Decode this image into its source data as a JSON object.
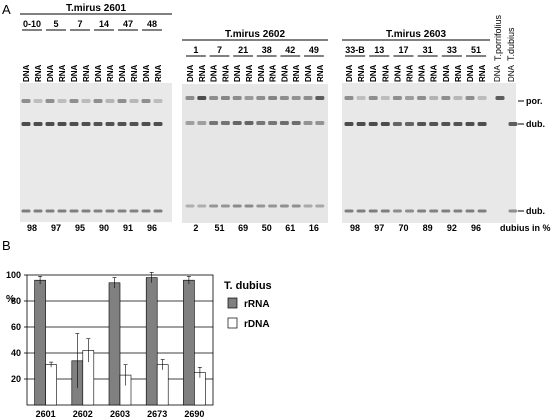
{
  "panelA": {
    "label": "A",
    "gels": [
      {
        "title": "T.mirus 2601",
        "groups": [
          {
            "label": "0-10",
            "lanes": [
              "DNA",
              "RNA"
            ],
            "pct": "98"
          },
          {
            "label": "5",
            "lanes": [
              "DNA",
              "RNA"
            ],
            "pct": "97"
          },
          {
            "label": "7",
            "lanes": [
              "DNA",
              "RNA"
            ],
            "pct": "95"
          },
          {
            "label": "14",
            "lanes": [
              "DNA",
              "RNA"
            ],
            "pct": "90"
          },
          {
            "label": "47",
            "lanes": [
              "DNA",
              "RNA"
            ],
            "pct": "91"
          },
          {
            "label": "48",
            "lanes": [
              "DNA",
              "RNA"
            ],
            "pct": "96"
          }
        ]
      },
      {
        "title": "T.mirus 2602",
        "groups": [
          {
            "label": "1",
            "lanes": [
              "DNA",
              "RNA"
            ],
            "pct": "2"
          },
          {
            "label": "7",
            "lanes": [
              "DNA",
              "RNA"
            ],
            "pct": "51"
          },
          {
            "label": "21",
            "lanes": [
              "DNA",
              "RNA"
            ],
            "pct": "69"
          },
          {
            "label": "38",
            "lanes": [
              "DNA",
              "RNA"
            ],
            "pct": "50"
          },
          {
            "label": "42",
            "lanes": [
              "DNA",
              "RNA"
            ],
            "pct": "61"
          },
          {
            "label": "49",
            "lanes": [
              "DNA",
              "RNA"
            ],
            "pct": "16"
          }
        ]
      },
      {
        "title": "T.mirus 2603",
        "groups": [
          {
            "label": "33-B",
            "lanes": [
              "DNA",
              "RNA"
            ],
            "pct": "98"
          },
          {
            "label": "13",
            "lanes": [
              "DNA",
              "RNA"
            ],
            "pct": "97"
          },
          {
            "label": "17",
            "lanes": [
              "DNA",
              "RNA"
            ],
            "pct": "70"
          },
          {
            "label": "31",
            "lanes": [
              "DNA",
              "RNA"
            ],
            "pct": "89"
          },
          {
            "label": "33",
            "lanes": [
              "DNA",
              "RNA"
            ],
            "pct": "92"
          },
          {
            "label": "51",
            "lanes": [
              "DNA",
              "RNA"
            ],
            "pct": "96"
          }
        ],
        "controls": [
          {
            "species": "T.porrifolius",
            "lane": "DNA"
          },
          {
            "species": "T.dubius",
            "lane": "DNA"
          }
        ]
      }
    ],
    "band_labels": [
      "por.",
      "dub.",
      "dub."
    ],
    "percent_caption": "dubius in %"
  },
  "panelB": {
    "label": "B",
    "chart_data": {
      "type": "bar",
      "categories": [
        "2601",
        "2602",
        "2603",
        "2673",
        "2690"
      ],
      "series": [
        {
          "name": "rRNA",
          "values": [
            96,
            34,
            94,
            98,
            96
          ],
          "errors": [
            3,
            21,
            4,
            4,
            3
          ],
          "color": "#808080"
        },
        {
          "name": "rDNA",
          "values": [
            31,
            42,
            23,
            31,
            25
          ],
          "errors": [
            2,
            9,
            8,
            4,
            4
          ],
          "color": "#ffffff"
        }
      ],
      "ylabel": "%",
      "ylim": [
        0,
        100
      ],
      "yticks": [
        "20",
        "40",
        "60",
        "80",
        "100"
      ],
      "grid": true,
      "legend_title": "T. dubius",
      "legend_position": "right"
    }
  }
}
